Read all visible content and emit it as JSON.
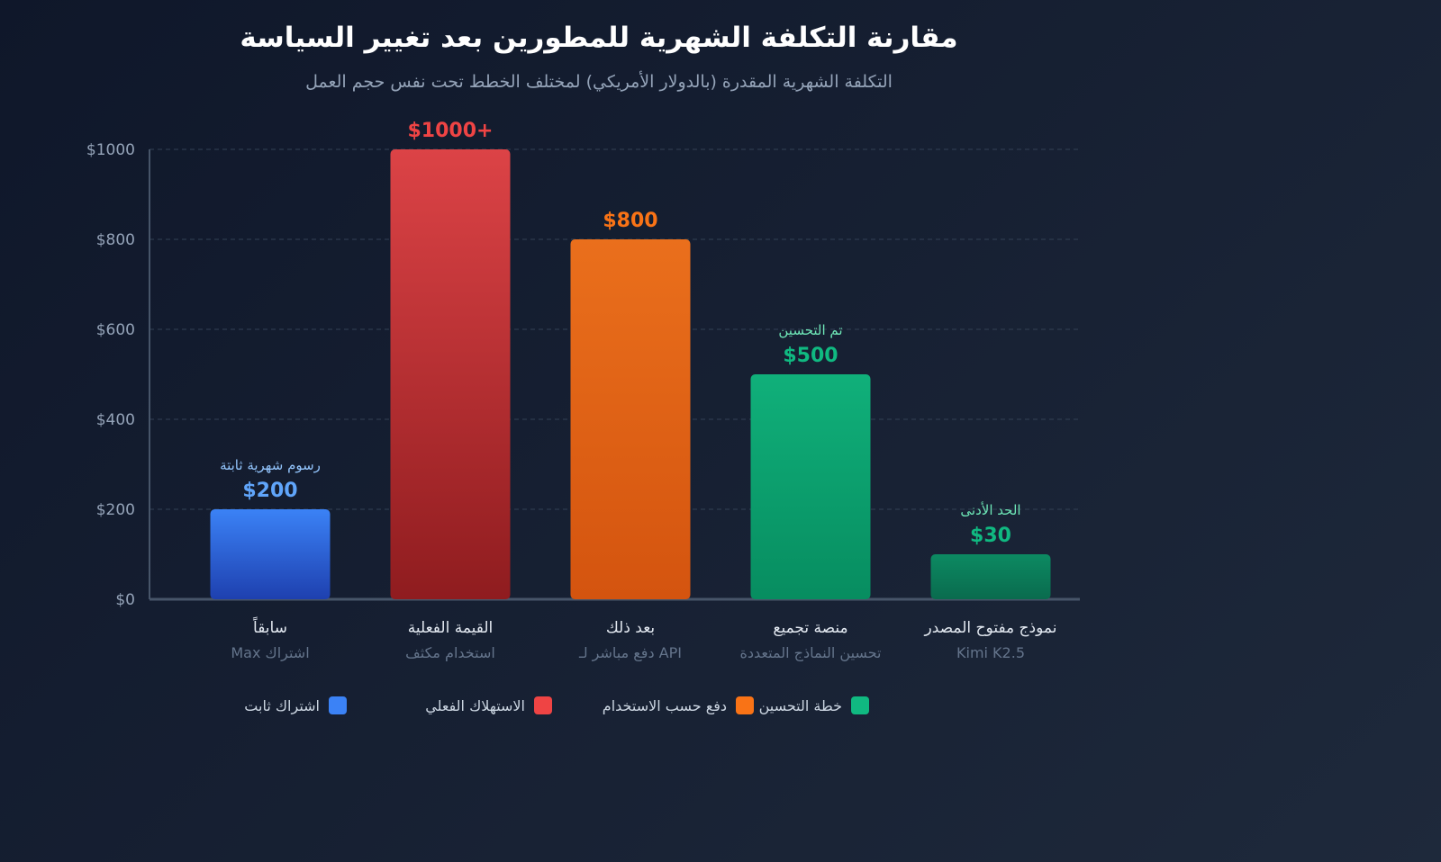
{
  "chart_data": {
    "type": "bar",
    "title": "مقارنة التكلفة الشهرية للمطورين بعد تغيير السياسة",
    "subtitle": "التكلفة الشهرية المقدرة (بالدولار الأمريكي) لمختلف الخطط تحت نفس حجم العمل",
    "ylim": [
      0,
      1000
    ],
    "yticks": [
      0,
      200,
      400,
      600,
      800,
      1000
    ],
    "ytick_labels": [
      "$0",
      "$200",
      "$400",
      "$600",
      "$800",
      "$1000"
    ],
    "grid": true,
    "categories": [
      {
        "label": "سابقاً",
        "sub": "اشتراك Max",
        "value": 200,
        "value_label": "$200",
        "note": "رسوم شهرية ثابتة",
        "color_top": "#3b82f6",
        "color_bottom": "#1e40af",
        "label_color": "#60a5fa",
        "note_color": "#93c5fd"
      },
      {
        "label": "القيمة الفعلية",
        "sub": "استخدام مكثف",
        "value": 1000,
        "value_label": "$1000+",
        "note": "",
        "color_top": "#dc4346",
        "color_bottom": "#8f1c1f",
        "label_color": "#ef4444",
        "note_color": "#ef4444"
      },
      {
        "label": "بعد ذلك",
        "sub": "API دفع مباشر لـ",
        "value": 800,
        "value_label": "$800",
        "note": "",
        "color_top": "#ea6f1c",
        "color_bottom": "#d4540f",
        "label_color": "#f97316",
        "note_color": "#f97316"
      },
      {
        "label": "منصة تجميع",
        "sub": "تحسين النماذج المتعددة",
        "value": 500,
        "value_label": "$500",
        "note": "تم التحسين",
        "color_top": "#10b07a",
        "color_bottom": "#078d60",
        "label_color": "#10b981",
        "note_color": "#6ee7b7"
      },
      {
        "label": "نموذج مفتوح المصدر",
        "sub": "Kimi K2.5",
        "value": 30,
        "value_label": "$30",
        "note": "الحد الأدنى",
        "color_top": "#0c8a62",
        "color_bottom": "#0a6b4e",
        "label_color": "#10b981",
        "note_color": "#6ee7b7"
      }
    ],
    "legend": [
      {
        "label": "اشتراك ثابت",
        "color": "#3b82f6"
      },
      {
        "label": "الاستهلاك الفعلي",
        "color": "#ef4444"
      },
      {
        "label": "دفع حسب الاستخدام",
        "color": "#f97316"
      },
      {
        "label": "خطة التحسين",
        "color": "#10b981"
      }
    ],
    "legend_position": "bottom"
  }
}
